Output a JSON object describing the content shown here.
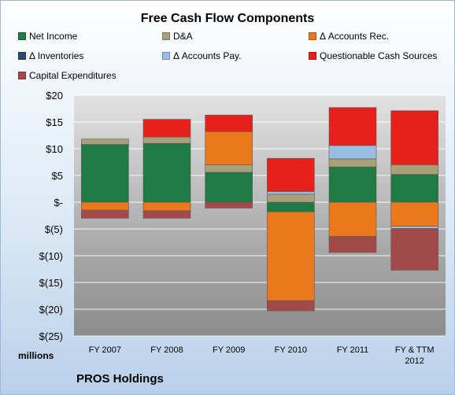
{
  "chart_data": {
    "type": "bar",
    "stacked": true,
    "title": "Free Cash Flow Components",
    "ylabel": "millions",
    "ylim": [
      -25,
      20
    ],
    "ytick_values": [
      20,
      15,
      10,
      5,
      0,
      -5,
      -10,
      -15,
      -20,
      -25
    ],
    "ytick_labels": [
      "$20",
      "$15",
      "$10",
      "$5",
      "$-",
      "$(5)",
      "$(10)",
      "$(15)",
      "$(20)",
      "$(25)"
    ],
    "categories": [
      "FY 2007",
      "FY 2008",
      "FY 2009",
      "FY 2010",
      "FY 2011",
      "FY & TTM 2012"
    ],
    "grid": true,
    "legend_position": "top",
    "series": [
      {
        "name": "Net Income",
        "color": "#1e7b43",
        "values": [
          10.8,
          11.0,
          5.6,
          -1.8,
          6.6,
          5.2
        ]
      },
      {
        "name": "D&A",
        "color": "#a8a078",
        "values": [
          1.0,
          1.2,
          1.4,
          1.5,
          1.5,
          1.8
        ]
      },
      {
        "name": "Δ Accounts Rec.",
        "color": "#e9791c",
        "values": [
          -1.5,
          -1.6,
          6.2,
          -16.6,
          -6.4,
          -4.5
        ]
      },
      {
        "name": "Δ Inventories",
        "color": "#2a4a6e",
        "values": [
          0,
          0,
          0,
          0,
          0,
          0
        ]
      },
      {
        "name": "Δ Accounts Pay.",
        "color": "#9cbde3",
        "values": [
          0,
          0,
          0,
          0.5,
          2.5,
          -0.4
        ]
      },
      {
        "name": "Questionable Cash Sources",
        "color": "#e8201c",
        "values": [
          0,
          3.3,
          3.1,
          6.2,
          7.1,
          10.1
        ]
      },
      {
        "name": "Capital Expenditures",
        "color": "#a24a4a",
        "values": [
          -1.5,
          -1.4,
          -1.1,
          -1.9,
          -3.0,
          -7.8
        ]
      }
    ]
  },
  "footer": {
    "company": "PROS Holdings"
  }
}
